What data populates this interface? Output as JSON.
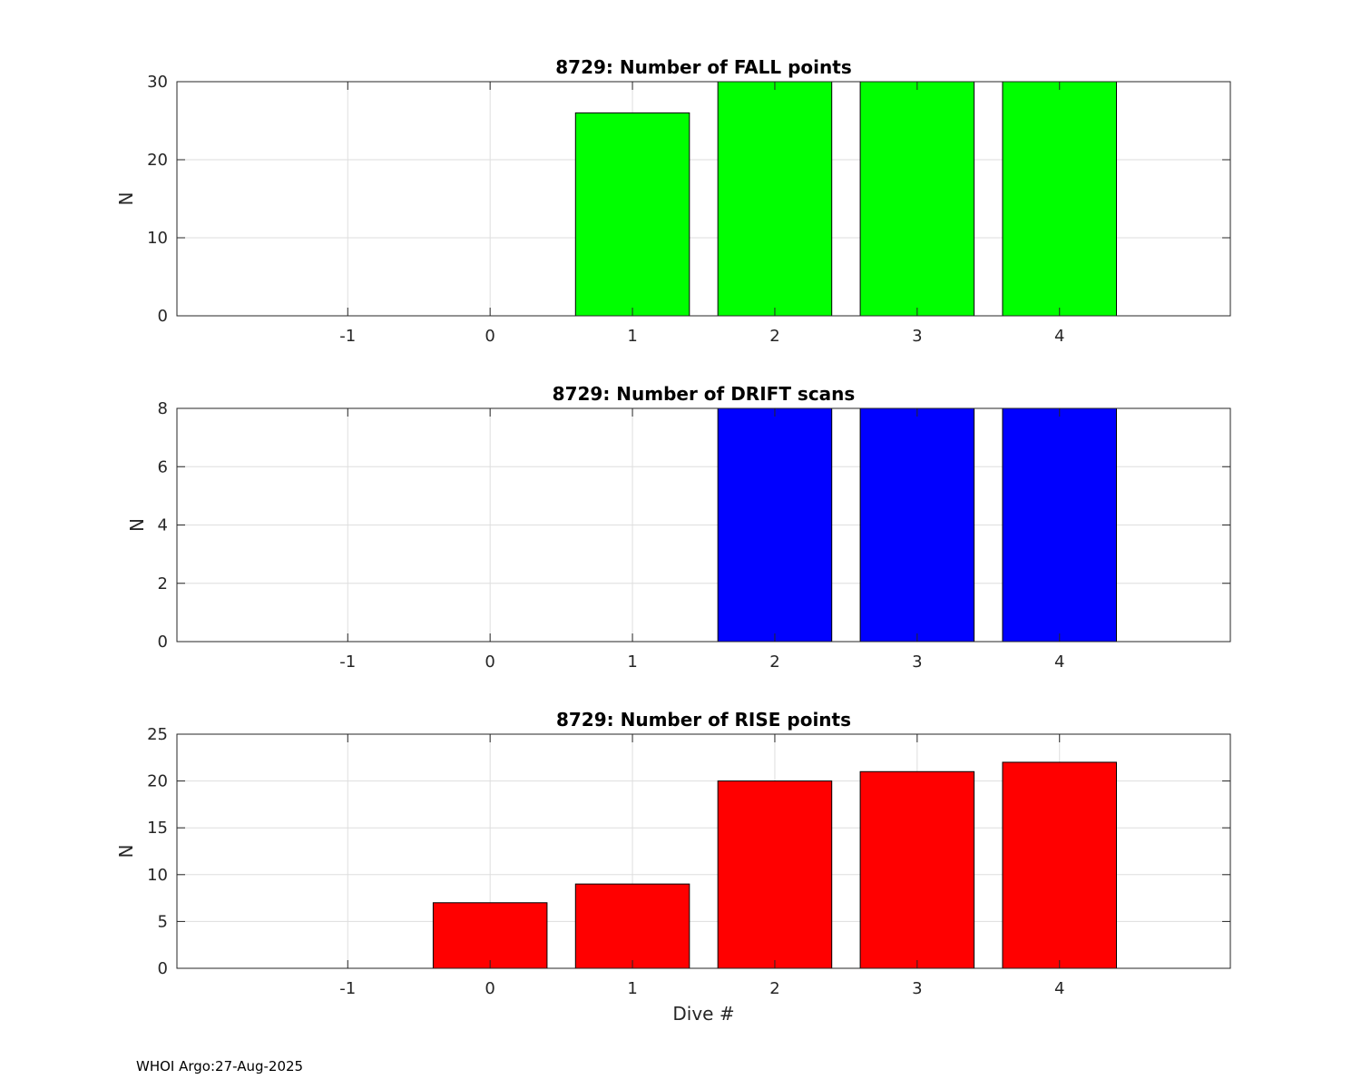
{
  "footer": {
    "note": "WHOI Argo:27-Aug-2025"
  },
  "chart_data": [
    {
      "type": "bar",
      "title": "8729: Number of FALL points",
      "ylabel": "N",
      "xlabel": "",
      "x": [
        1,
        2,
        3,
        4
      ],
      "values": [
        26,
        30,
        30,
        30
      ],
      "xlim": [
        -2.2,
        5.2
      ],
      "ylim": [
        0,
        30
      ],
      "xticks": [
        "-1",
        "0",
        "1",
        "2",
        "3",
        "4"
      ],
      "yticks": [
        "0",
        "10",
        "20",
        "30"
      ],
      "bar_color": "#00ff00",
      "grid": true
    },
    {
      "type": "bar",
      "title": "8729: Number of DRIFT scans",
      "ylabel": "N",
      "xlabel": "",
      "x": [
        2,
        3,
        4
      ],
      "values": [
        8,
        8,
        8
      ],
      "xlim": [
        -2.2,
        5.2
      ],
      "ylim": [
        0,
        8
      ],
      "xticks": [
        "-1",
        "0",
        "1",
        "2",
        "3",
        "4"
      ],
      "yticks": [
        "0",
        "2",
        "4",
        "6",
        "8"
      ],
      "bar_color": "#0000ff",
      "grid": true
    },
    {
      "type": "bar",
      "title": "8729: Number of RISE points",
      "ylabel": "N",
      "xlabel": "Dive #",
      "x": [
        0,
        1,
        2,
        3,
        4
      ],
      "values": [
        7,
        9,
        20,
        21,
        22
      ],
      "xlim": [
        -2.2,
        5.2
      ],
      "ylim": [
        0,
        25
      ],
      "xticks": [
        "-1",
        "0",
        "1",
        "2",
        "3",
        "4"
      ],
      "yticks": [
        "0",
        "5",
        "10",
        "15",
        "20",
        "25"
      ],
      "bar_color": "#ff0000",
      "grid": true
    }
  ]
}
